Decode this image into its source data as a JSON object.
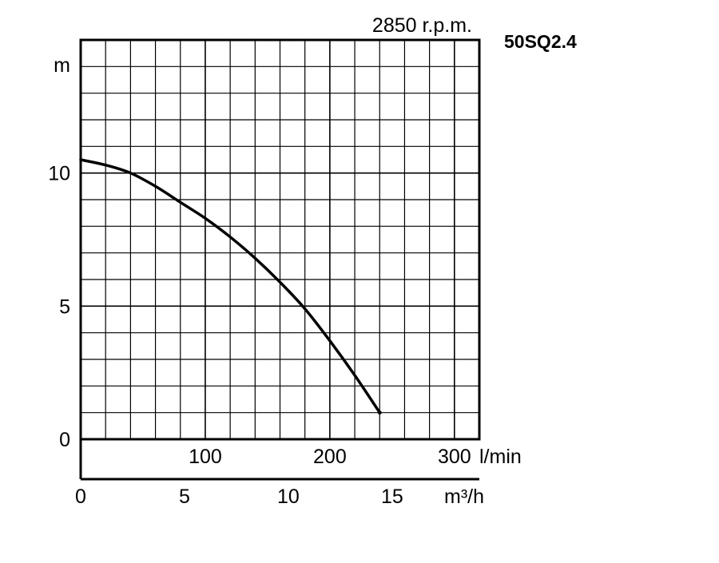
{
  "chart_data": {
    "type": "line",
    "title": "",
    "model": "50SQ2.4",
    "speed": "2850 r.p.m.",
    "ylabel": "m",
    "xlabel_primary": "l/min",
    "xlabel_secondary": "m³/h",
    "ylim": [
      0,
      15
    ],
    "xlim_lmin": [
      0,
      320
    ],
    "xlim_m3h": [
      0,
      19.2
    ],
    "y_ticks": [
      0,
      5,
      10
    ],
    "x_ticks_lmin": [
      100,
      200,
      300
    ],
    "x_ticks_m3h": [
      0,
      5,
      10,
      15
    ],
    "grid": true,
    "series": [
      {
        "x": [
          0,
          20,
          40,
          60,
          80,
          100,
          120,
          140,
          160,
          180,
          200,
          220,
          240
        ],
        "y": [
          10.5,
          10.3,
          10.0,
          9.5,
          8.9,
          8.3,
          7.6,
          6.8,
          5.9,
          4.9,
          3.7,
          2.4,
          1.0
        ]
      }
    ]
  }
}
